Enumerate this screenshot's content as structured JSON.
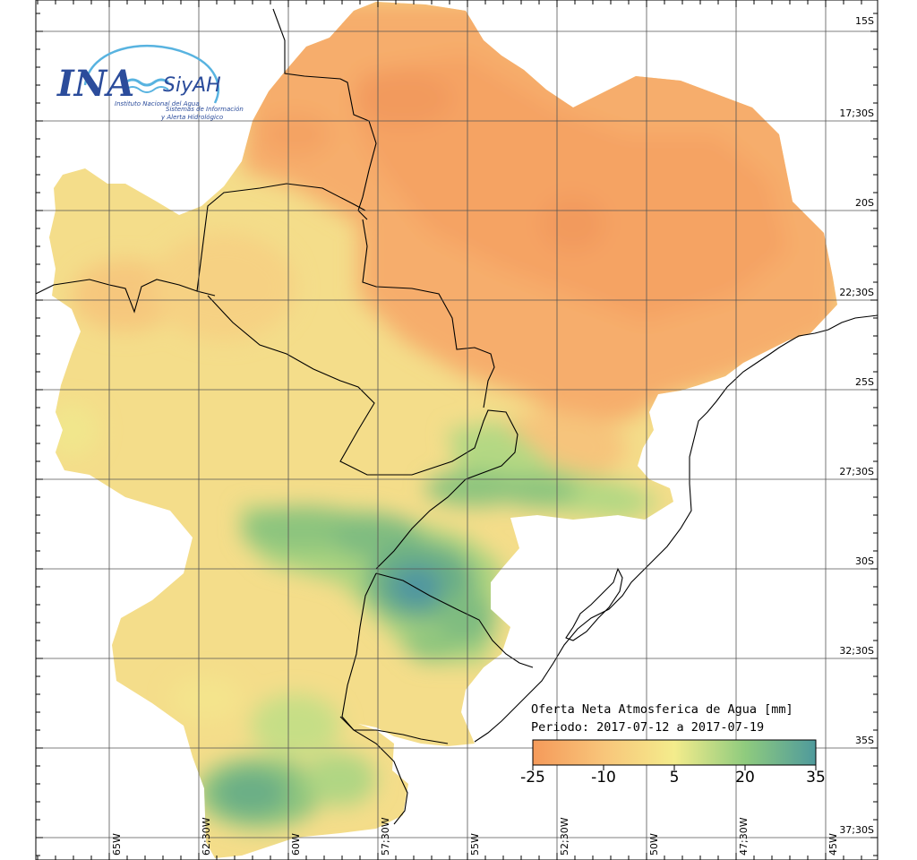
{
  "logo": {
    "main": "INA",
    "sub": "SiyAH",
    "line1": "Instituto Nacional del Agua",
    "line2": "Sistemas de Información",
    "line3": "y Alerta Hidrológico"
  },
  "legend": {
    "title_line1": "Oferta Neta Atmosferica de Agua [mm]",
    "title_line2": "Periodo: 2017-07-12 a 2017-07-19",
    "ticks": [
      "-25",
      "-10",
      "5",
      "20",
      "35"
    ],
    "colors": [
      "#f59a5a",
      "#f8c57a",
      "#f4ec8c",
      "#8fcb7e",
      "#4f9a9c"
    ]
  },
  "grid": {
    "lat_labels": [
      "15S",
      "17;30S",
      "20S",
      "22;30S",
      "25S",
      "27;30S",
      "30S",
      "32;30S",
      "35S",
      "37;30S"
    ],
    "lon_labels": [
      "65W",
      "62;30W",
      "60W",
      "57;30W",
      "55W",
      "52;30W",
      "50W",
      "47;30W",
      "45W"
    ]
  },
  "colors": {
    "dry": "#f6a565",
    "neutral": "#f6de86",
    "wet": "#8cc47e",
    "very_wet": "#4f95a0"
  }
}
